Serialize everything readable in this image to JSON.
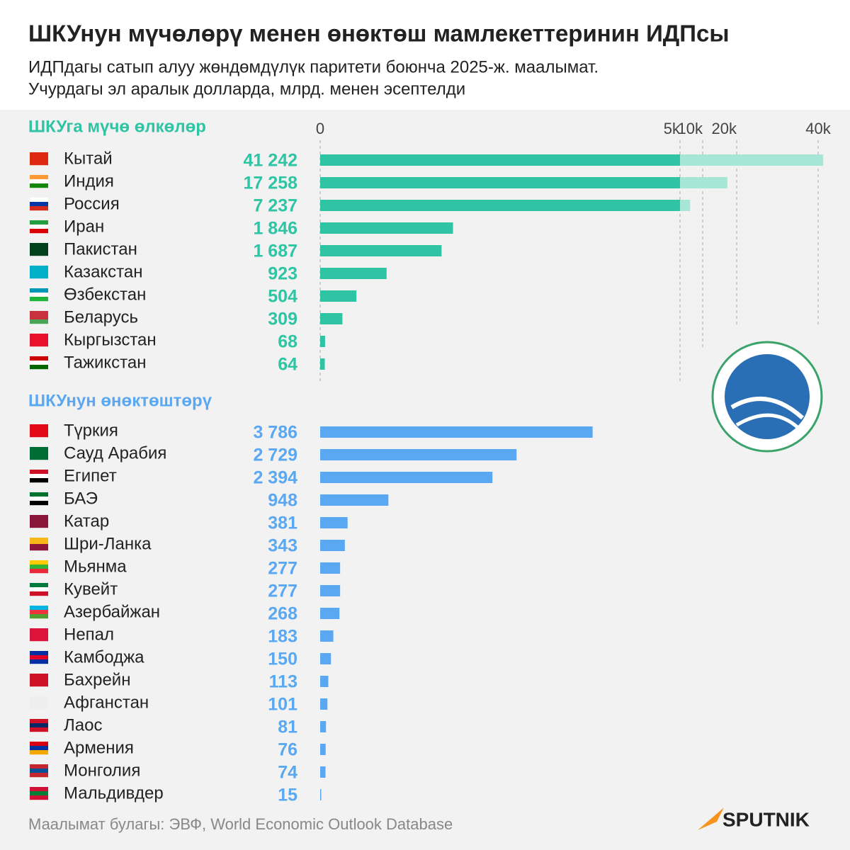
{
  "chart_data": {
    "type": "bar",
    "title": "ШКУнун мүчөлөрү менен өнөктөш мамлекеттеринин ИДПсы",
    "subtitle": [
      "ИДПдагы сатып алуу жөндөмдүлүк паритети боюнча 2025-ж. маалымат.",
      "Учурдагы эл аралык долларда, млрд. менен эсептелди"
    ],
    "xticks": [
      0,
      {
        "value": 5000,
        "label": "5k"
      },
      {
        "value": 10000,
        "label": "10k"
      },
      {
        "value": 20000,
        "label": "20k"
      },
      {
        "value": 40000,
        "label": "40k"
      }
    ],
    "series": [
      {
        "name": "ШКУга мүчө өлкөлөр",
        "color": "#2ec4a4",
        "light_color": "#a6e6d6",
        "categories": [
          "Кытай",
          "Индия",
          "Россия",
          "Иран",
          "Пакистан",
          "Казакстан",
          "Өзбекстан",
          "Беларусь",
          "Кыргызстан",
          "Тажикстан"
        ],
        "values": [
          41242,
          17258,
          7237,
          1846,
          1687,
          923,
          504,
          309,
          68,
          64
        ],
        "value_labels": [
          "41 242",
          "17 258",
          "7 237",
          "1 846",
          "1 687",
          "923",
          "504",
          "309",
          "68",
          "64"
        ]
      },
      {
        "name": "ШКУнун өнөктөштөрү",
        "color": "#5aa8f2",
        "light_color": "#b8dafa",
        "categories": [
          "Түркия",
          "Сауд Арабия",
          "Египет",
          "БАЭ",
          "Катар",
          "Шри-Ланка",
          "Мьянма",
          "Кувейт",
          "Азербайжан",
          "Непал",
          "Камбоджа",
          "Бахрейн",
          "Афганстан",
          "Лаос",
          "Армения",
          "Монголия",
          "Мальдивдер"
        ],
        "values": [
          3786,
          2729,
          2394,
          948,
          381,
          343,
          277,
          277,
          268,
          183,
          150,
          113,
          101,
          81,
          76,
          74,
          15
        ],
        "value_labels": [
          "3 786",
          "2 729",
          "2 394",
          "948",
          "381",
          "343",
          "277",
          "277",
          "268",
          "183",
          "150",
          "113",
          "101",
          "81",
          "76",
          "74",
          "15"
        ]
      }
    ],
    "source": "Маалымат булагы: ЭВФ, World Economic Outlook Database",
    "brand": "SPUTNIK"
  }
}
